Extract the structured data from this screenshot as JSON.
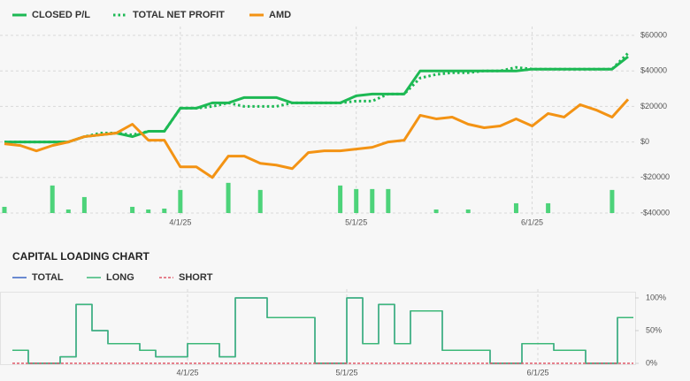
{
  "chart_data": [
    {
      "type": "line",
      "categories": [
        null,
        null,
        null,
        null,
        null,
        null,
        null,
        null,
        null,
        null,
        null,
        "4/1/25",
        null,
        null,
        null,
        null,
        null,
        null,
        null,
        null,
        null,
        null,
        "5/1/25",
        null,
        null,
        null,
        null,
        null,
        null,
        null,
        null,
        null,
        null,
        "6/1/25",
        null,
        null,
        null,
        null,
        null,
        null
      ],
      "series": [
        {
          "name": "CLOSED P/L",
          "color": "#1db954",
          "line_style": "solid",
          "values": [
            0,
            0,
            0,
            0,
            0,
            3000,
            4000,
            5000,
            3000,
            6000,
            6000,
            19000,
            19000,
            22000,
            22000,
            25000,
            25000,
            25000,
            22000,
            22000,
            22000,
            22000,
            26000,
            27000,
            27000,
            27000,
            40000,
            40000,
            40000,
            40000,
            40000,
            40000,
            40000,
            41000,
            41000,
            41000,
            41000,
            41000,
            41000,
            48000
          ]
        },
        {
          "name": "TOTAL NET PROFIT",
          "color": "#1db954",
          "line_style": "dotted",
          "values": [
            0,
            0,
            0,
            0,
            0,
            3000,
            5000,
            5000,
            4000,
            6000,
            6000,
            19000,
            19000,
            20000,
            22000,
            20000,
            20000,
            20000,
            22000,
            22000,
            22000,
            22000,
            23000,
            23000,
            27000,
            27000,
            36000,
            38000,
            39000,
            39000,
            40000,
            40000,
            42000,
            41000,
            41000,
            41000,
            41000,
            41000,
            41000,
            50000
          ]
        },
        {
          "name": "AMD",
          "color": "#f39314",
          "line_style": "solid",
          "values": [
            -1000,
            -2000,
            -5000,
            -2000,
            0,
            3000,
            4000,
            5000,
            10000,
            1000,
            1000,
            -14000,
            -14000,
            -20000,
            -8000,
            -8000,
            -12000,
            -13000,
            -15000,
            -6000,
            -5000,
            -5000,
            -4000,
            -3000,
            0,
            1000,
            15000,
            13000,
            14000,
            10000,
            8000,
            9000,
            13000,
            9000,
            16000,
            14000,
            21000,
            18000,
            14000,
            24000
          ]
        }
      ],
      "bars": {
        "color": "#4dd37a",
        "values": [
          3500,
          0,
          0,
          15500,
          2000,
          9000,
          0,
          0,
          3500,
          2000,
          2500,
          13000,
          0,
          0,
          17000,
          0,
          13000,
          0,
          0,
          0,
          0,
          15500,
          13500,
          13500,
          13500,
          0,
          0,
          2000,
          0,
          2000,
          0,
          0,
          5500,
          0,
          5500,
          0,
          0,
          0,
          13000,
          0
        ]
      },
      "ylim": [
        -40000,
        60000
      ],
      "yticks": [
        {
          "value": 60000,
          "label": "$60000"
        },
        {
          "value": 40000,
          "label": "$40000"
        },
        {
          "value": 20000,
          "label": "$20000"
        },
        {
          "value": 0,
          "label": "$0"
        },
        {
          "value": -20000,
          "label": "-$20000"
        },
        {
          "value": -40000,
          "label": "-$40000"
        }
      ],
      "grid": true
    },
    {
      "type": "line",
      "title": "CAPITAL LOADING CHART",
      "step": "after",
      "categories": [
        null,
        null,
        null,
        null,
        null,
        null,
        null,
        null,
        null,
        null,
        null,
        "4/1/25",
        null,
        null,
        null,
        null,
        null,
        null,
        null,
        null,
        null,
        "5/1/25",
        null,
        null,
        null,
        null,
        null,
        null,
        null,
        null,
        null,
        null,
        null,
        "6/1/25",
        null,
        null,
        null,
        null,
        null,
        null
      ],
      "series": [
        {
          "name": "TOTAL",
          "color": "#3a66c4",
          "line_style": "solid",
          "values": [
            20,
            0,
            0,
            10,
            90,
            50,
            30,
            30,
            20,
            10,
            10,
            30,
            30,
            10,
            100,
            100,
            70,
            70,
            70,
            0,
            0,
            100,
            30,
            90,
            30,
            80,
            80,
            20,
            20,
            20,
            0,
            0,
            30,
            30,
            20,
            20,
            0,
            0,
            70,
            70
          ]
        },
        {
          "name": "LONG",
          "color": "#3cb878",
          "line_style": "solid",
          "values": [
            20,
            0,
            0,
            10,
            90,
            50,
            30,
            30,
            20,
            10,
            10,
            30,
            30,
            10,
            100,
            100,
            70,
            70,
            70,
            0,
            0,
            100,
            30,
            90,
            30,
            80,
            80,
            20,
            20,
            20,
            0,
            0,
            30,
            30,
            20,
            20,
            0,
            0,
            70,
            70
          ]
        },
        {
          "name": "SHORT",
          "color": "#e05a6a",
          "line_style": "dashed",
          "values": [
            0,
            0,
            0,
            0,
            0,
            0,
            0,
            0,
            0,
            0,
            0,
            0,
            0,
            0,
            0,
            0,
            0,
            0,
            0,
            0,
            0,
            0,
            0,
            0,
            0,
            0,
            0,
            0,
            0,
            0,
            0,
            0,
            0,
            0,
            0,
            0,
            0,
            0,
            0,
            0
          ]
        }
      ],
      "ylim": [
        0,
        100
      ],
      "yticks": [
        {
          "value": 100,
          "label": "100%"
        },
        {
          "value": 50,
          "label": "50%"
        },
        {
          "value": 0,
          "label": "0%"
        }
      ],
      "grid": false
    }
  ]
}
